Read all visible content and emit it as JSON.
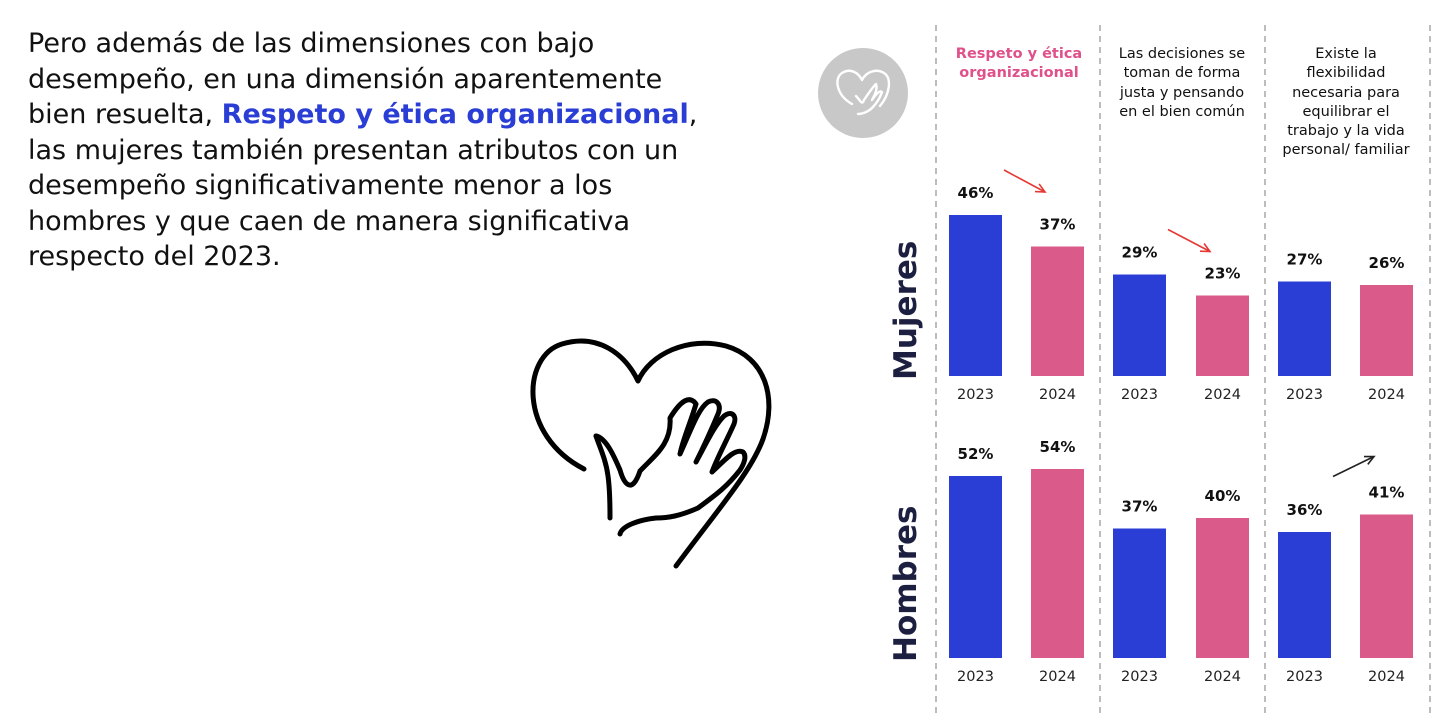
{
  "intro": {
    "part1": "Pero además de las dimensiones con bajo desempeño, en una dimensión aparentemente bien resuelta, ",
    "highlight": "Respeto y ética organizacional",
    "part2": ", las mujeres también presentan atributos con un desempeño significativamente menor a los hombres y que caen de manera significativa respecto del 2023."
  },
  "icons": {
    "big": "heart-hand-icon",
    "badge": "heart-hand-badge-icon"
  },
  "colors": {
    "blue": "#2a3ed6",
    "pink": "#da5a8a",
    "accent_text": "#e0508a",
    "arrow_red": "#e53935",
    "arrow_black": "#222222",
    "divider": "#bdbdbd"
  },
  "chart_data": {
    "type": "bar",
    "columns": [
      {
        "title": "Respeto y ética organizacional",
        "highlight": true
      },
      {
        "title": "Las decisiones se toman de forma justa y pensando en el bien común",
        "highlight": false
      },
      {
        "title": "Existe la flexibilidad necesaria para equilibrar el trabajo y la vida personal/ familiar",
        "highlight": false
      }
    ],
    "rows": [
      "Mujeres",
      "Hombres"
    ],
    "categories": [
      "2023",
      "2024"
    ],
    "values": {
      "Mujeres": [
        [
          46,
          37
        ],
        [
          29,
          23
        ],
        [
          27,
          26
        ]
      ],
      "Hombres": [
        [
          52,
          54
        ],
        [
          37,
          40
        ],
        [
          36,
          41
        ]
      ]
    },
    "value_format": "{v}%",
    "arrows": [
      {
        "row": "Mujeres",
        "column": 0,
        "direction": "down",
        "color": "red"
      },
      {
        "row": "Mujeres",
        "column": 1,
        "direction": "down",
        "color": "red"
      },
      {
        "row": "Hombres",
        "column": 2,
        "direction": "up",
        "color": "black"
      }
    ]
  }
}
